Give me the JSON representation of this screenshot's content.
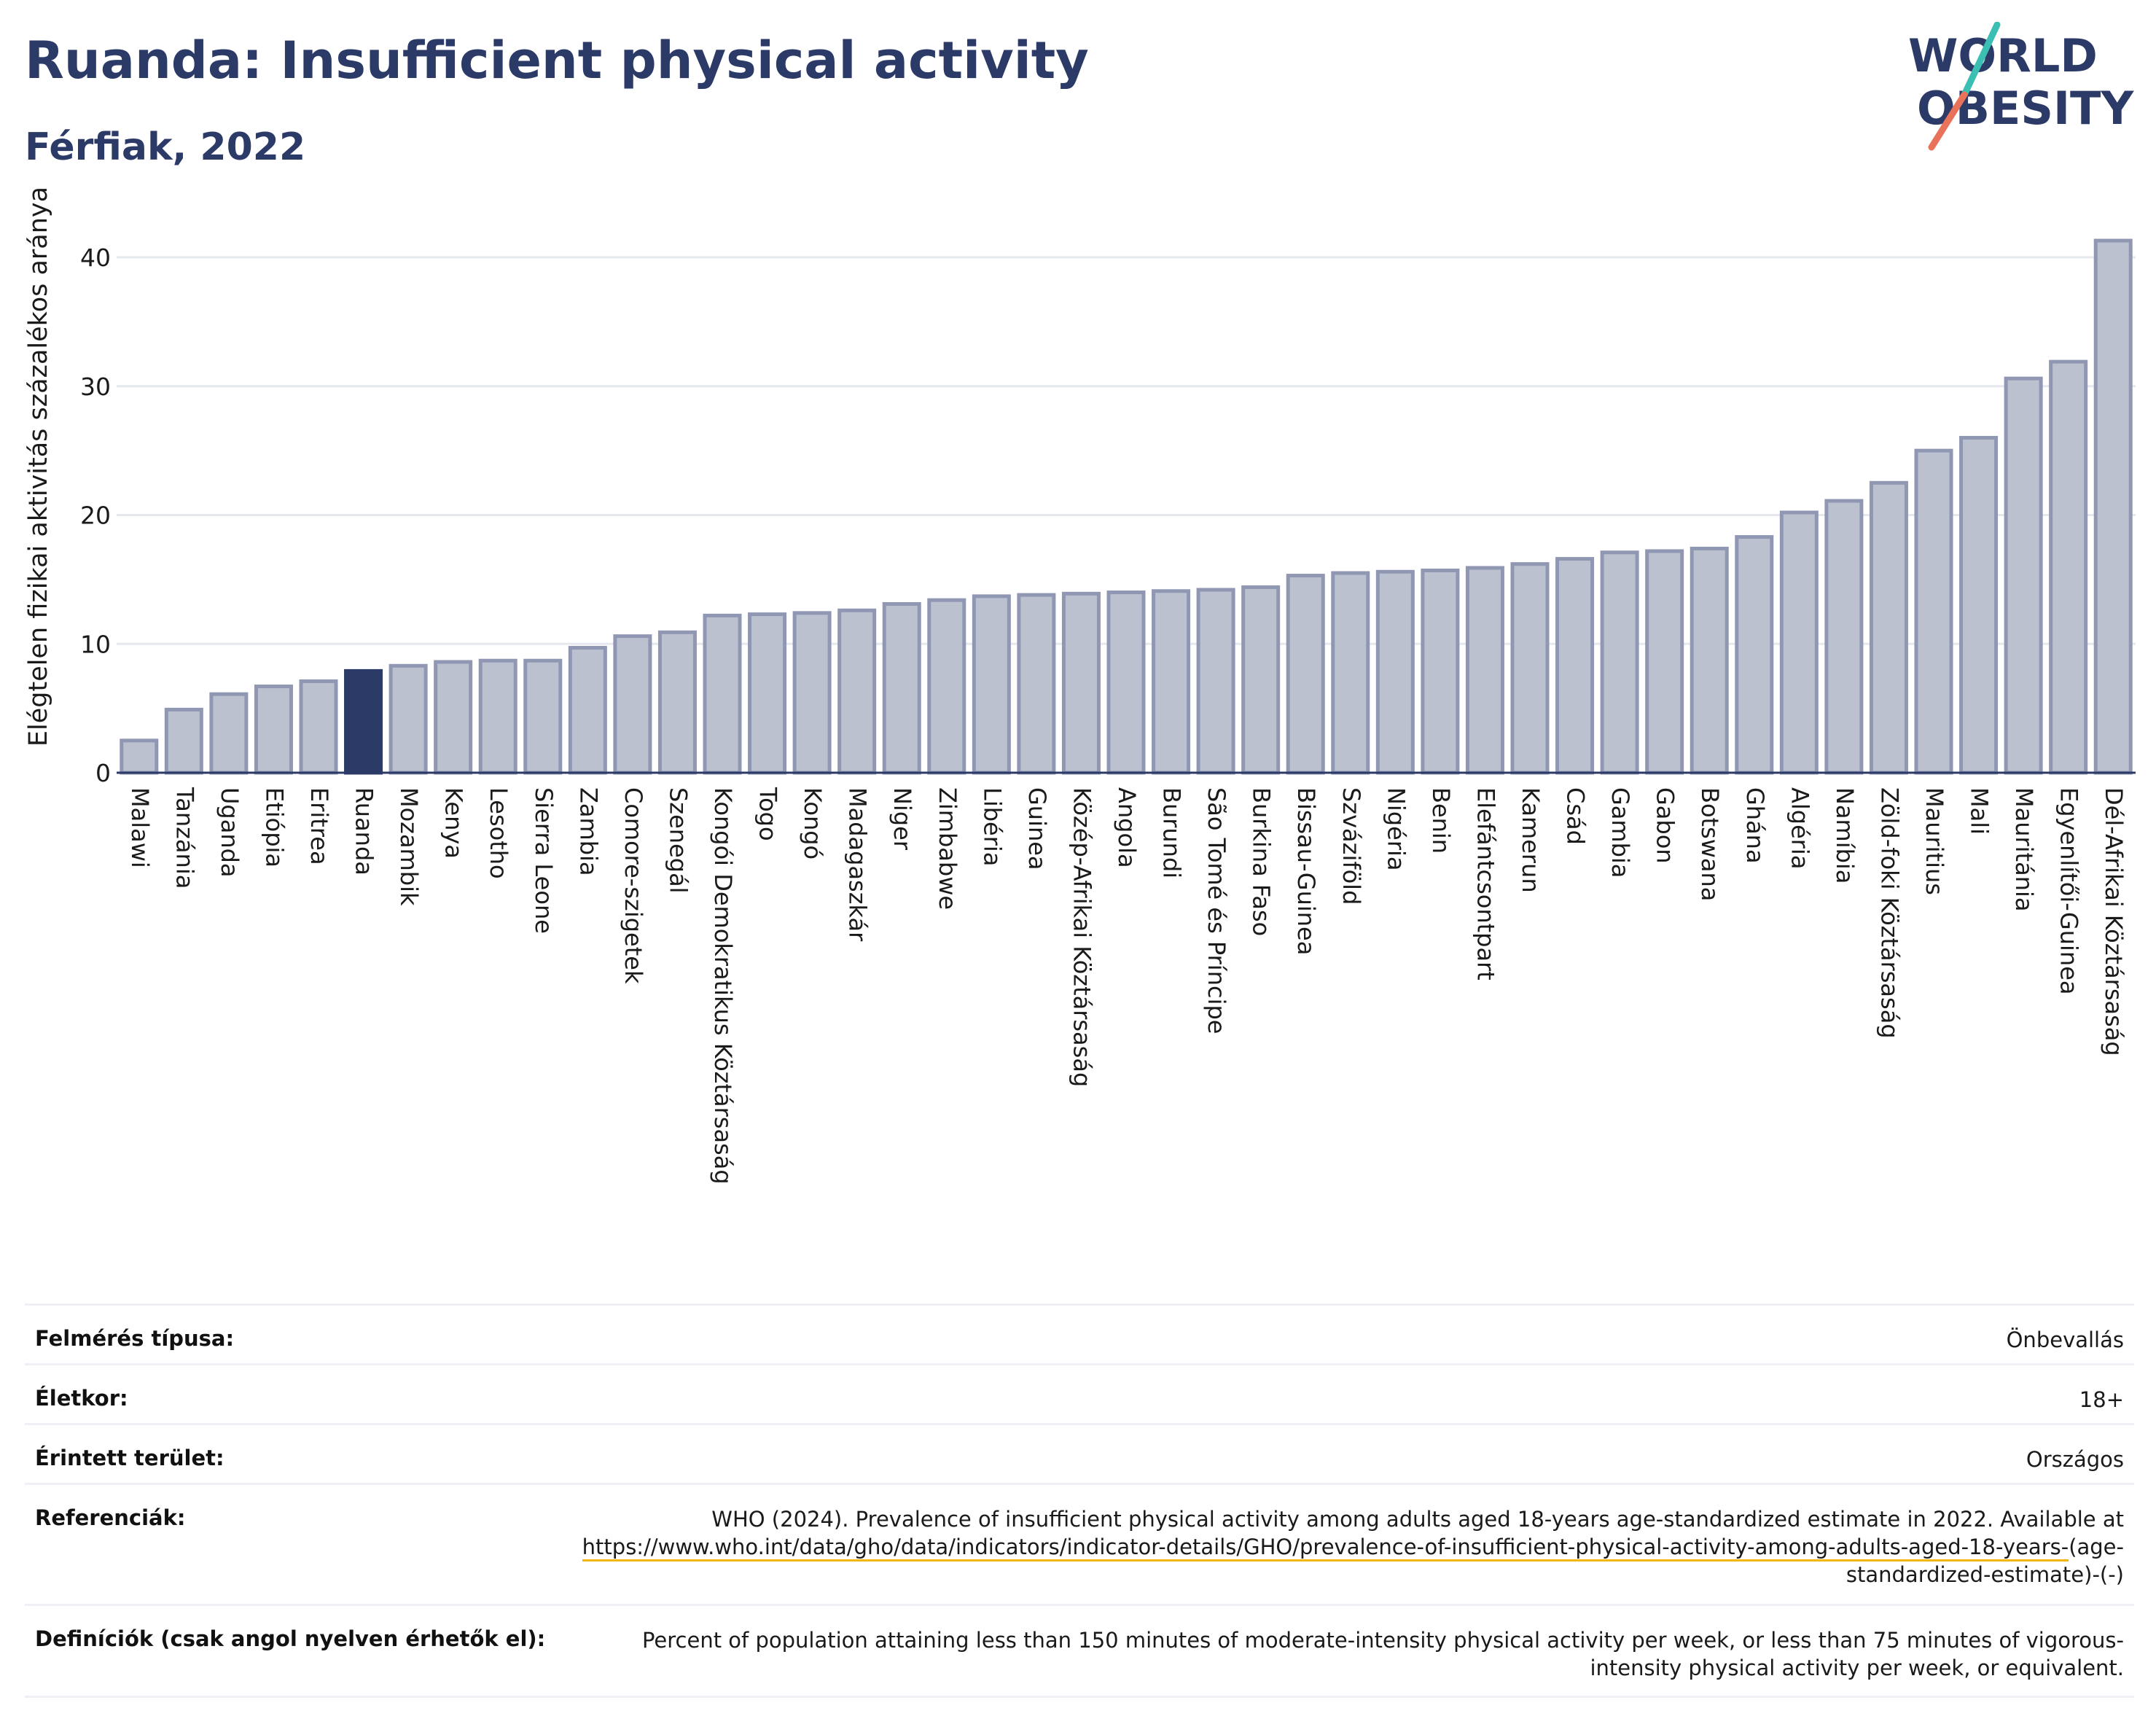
{
  "header": {
    "title": "Ruanda: Insufficient physical activity",
    "subtitle": "Férfiak, 2022"
  },
  "logo": {
    "line1": "WORLD",
    "line2": "OBESITY"
  },
  "colors": {
    "title": "#2b3a67",
    "bar_default": "#bcc1d0",
    "bar_default_stroke": "#8f97b3",
    "bar_highlight": "#2b3a67",
    "grid": "#e6e8ef",
    "axis": "#2b3a67",
    "link_underline": "#f2b705",
    "logo_teal": "#3bbfb3",
    "logo_coral": "#e8735a"
  },
  "chart_data": {
    "type": "bar",
    "title": "Ruanda: Insufficient physical activity",
    "subtitle": "Férfiak, 2022",
    "xlabel": "",
    "ylabel": "Elégtelen fizikai aktivitás százalékos aránya",
    "ylim": [
      0,
      43
    ],
    "yticks": [
      0,
      10,
      20,
      30,
      40
    ],
    "grid": true,
    "highlight": "Ruanda",
    "categories": [
      "Malawi",
      "Tanzánia",
      "Uganda",
      "Etiópia",
      "Eritrea",
      "Ruanda",
      "Mozambik",
      "Kenya",
      "Lesotho",
      "Sierra Leone",
      "Zambia",
      "Comore-szigetek",
      "Szenegál",
      "Kongói Demokratikus Köztársaság",
      "Togo",
      "Kongó",
      "Madagaszkár",
      "Niger",
      "Zimbabwe",
      "Libéria",
      "Guinea",
      "Közép-Afrikai Köztársaság",
      "Angola",
      "Burundi",
      "São Tomé és Príncipe",
      "Burkina Faso",
      "Bissau-Guinea",
      "Szváziföld",
      "Nigéria",
      "Benin",
      "Elefántcsontpart",
      "Kamerun",
      "Csád",
      "Gambia",
      "Gabon",
      "Botswana",
      "Ghána",
      "Algéria",
      "Namíbia",
      "Zöld-foki Köztársaság",
      "Mauritius",
      "Mali",
      "Mauritánia",
      "Egyenlítői-Guinea",
      "Dél-Afrikai Köztársaság"
    ],
    "values": [
      2.5,
      4.9,
      6.1,
      6.7,
      7.1,
      7.9,
      8.3,
      8.6,
      8.7,
      8.7,
      9.7,
      10.6,
      10.9,
      12.2,
      12.3,
      12.4,
      12.6,
      13.1,
      13.4,
      13.7,
      13.8,
      13.9,
      14.0,
      14.1,
      14.2,
      14.4,
      15.3,
      15.5,
      15.6,
      15.7,
      15.9,
      16.2,
      16.6,
      17.1,
      17.2,
      17.4,
      18.3,
      20.2,
      21.1,
      22.5,
      25.0,
      26.0,
      30.6,
      31.9,
      41.3
    ]
  },
  "info": {
    "survey_label": "Felmérés típusa:",
    "survey_value": "Önbevallás",
    "age_label": "Életkor:",
    "age_value": "18+",
    "area_label": "Érintett terület:",
    "area_value": "Országos",
    "ref_label": "Referenciák:",
    "ref_text": "WHO (2024). Prevalence of insufficient physical activity among adults aged 18-years age-standardized estimate in 2022. Available at",
    "ref_link": "https://www.who.int/data/gho/data/indicators/indicator-details/GHO/prevalence-of-insufficient-physical-activity-among-adults-aged-18-years-",
    "ref_tail": "(age-standardized-estimate)-(-)",
    "def_label": "Definíciók (csak angol nyelven érhetők el):",
    "def_text": "Percent of population attaining less than 150 minutes of moderate-intensity physical activity per week, or less than 75 minutes of vigorous-intensity physical activity per week, or equivalent."
  }
}
